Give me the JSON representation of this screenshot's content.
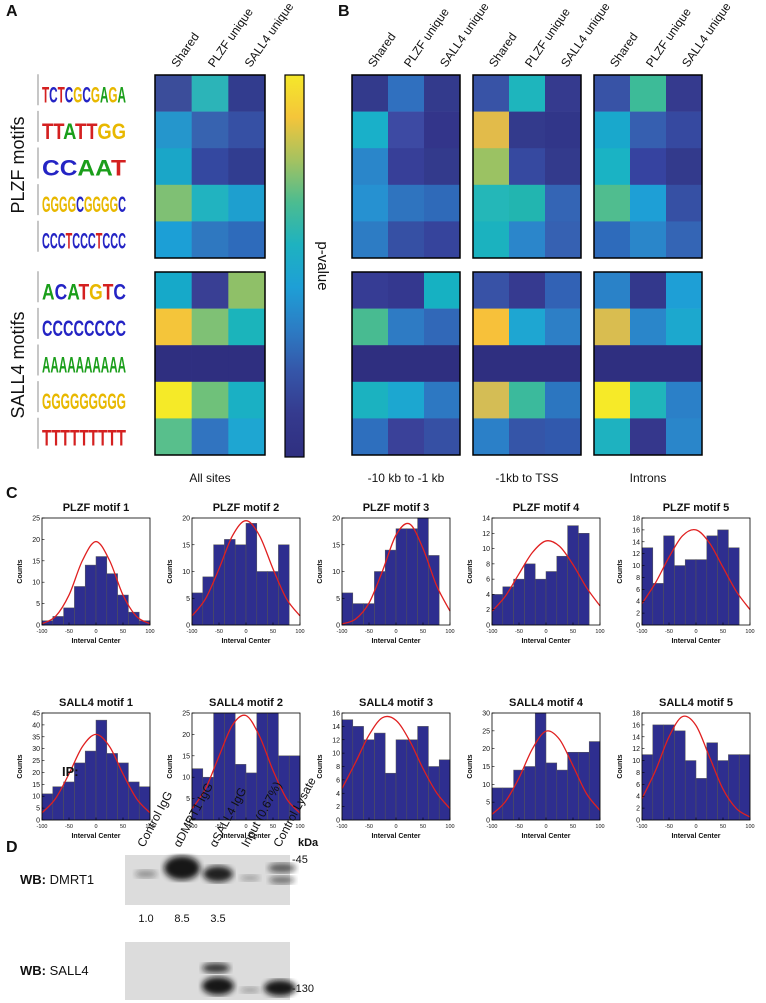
{
  "panel_labels": [
    "A",
    "B",
    "C",
    "D"
  ],
  "motif_logos": [
    "TCTCGCGAGA",
    "TTATTGG",
    "CCAAT",
    "GGGGCGGGGC",
    "CCCTCCCTCCC",
    "ACATGTC",
    "CCCCCCCC",
    "AAAAAAAAAA",
    "GGGGGGGGG",
    "TTTTTTTTT"
  ],
  "heatmaps": {
    "columns": [
      "Shared",
      "PLZF unique",
      "SALL4 unique"
    ],
    "row_groups": [
      "PLZF motifs",
      "SALL4 motifs"
    ],
    "colorbar_label": "p-value",
    "colorbar_colors": [
      "#f5e82a",
      "#f4c53a",
      "#a5c260",
      "#4cbc90",
      "#1eb2c0",
      "#1e9fd6",
      "#2c7cc4",
      "#3555a8",
      "#353a8e",
      "#2f2f80"
    ],
    "maps": [
      {
        "label": "All sites",
        "cells": [
          [
            [
              "#3b4d9a",
              "#2cb4b8",
              "#323c8e"
            ],
            [
              "#2596cc",
              "#3763b0",
              "#3650a4"
            ],
            [
              "#1aa6c8",
              "#3448a0",
              "#313d90"
            ],
            [
              "#7fc074",
              "#21b3c0",
              "#1e9fcf"
            ],
            [
              "#1c9fd6",
              "#2f78c0",
              "#2e6bbb"
            ]
          ],
          [
            [
              "#16a9c9",
              "#393f94",
              "#8fc068"
            ],
            [
              "#f4c53a",
              "#7fc175",
              "#1bb4bb"
            ],
            [
              "#2f2f80",
              "#2f2f80",
              "#2f2f80"
            ],
            [
              "#f5ea28",
              "#6fc17a",
              "#1ab0c4"
            ],
            [
              "#58bf8c",
              "#3174c0",
              "#1ea6d2"
            ]
          ]
        ]
      },
      {
        "label": "-10 kb to -1 kb",
        "cells": [
          [
            [
              "#333a8c",
              "#3070bf",
              "#333a8c"
            ],
            [
              "#19b0c9",
              "#3d4aa3",
              "#33358a"
            ],
            [
              "#2a86ca",
              "#373f98",
              "#333a8c"
            ],
            [
              "#2691d1",
              "#2f74bf",
              "#2f6ab9"
            ],
            [
              "#2d7cc4",
              "#3650a4",
              "#36449c"
            ]
          ],
          [
            [
              "#363c94",
              "#34388f",
              "#16b1c2"
            ],
            [
              "#48bb91",
              "#2e7bc4",
              "#3168b8"
            ],
            [
              "#2f2f80",
              "#2f2f80",
              "#2f2f80"
            ],
            [
              "#1bb2c0",
              "#1ca7d0",
              "#2d78c2"
            ],
            [
              "#2e6fbe",
              "#3a4199",
              "#3650a4"
            ]
          ]
        ]
      },
      {
        "label": "-1kb to TSS",
        "cells": [
          [
            [
              "#3853a6",
              "#1eb5bd",
              "#353a8e"
            ],
            [
              "#e2bb4a",
              "#333a8c",
              "#313689"
            ],
            [
              "#9bc263",
              "#3649a0",
              "#333a8c"
            ],
            [
              "#24b7b8",
              "#22b5b0",
              "#3465b5"
            ],
            [
              "#1bb2bf",
              "#2b86cb",
              "#3661b2"
            ]
          ],
          [
            [
              "#3852a6",
              "#363a90",
              "#3262b5"
            ],
            [
              "#f7c13a",
              "#1ea6d2",
              "#2d7fc6"
            ],
            [
              "#2f2f80",
              "#2f2f80",
              "#2f2f80"
            ],
            [
              "#d4bd55",
              "#3bba9c",
              "#2c76c0"
            ],
            [
              "#2b80c8",
              "#3555a8",
              "#3159ad"
            ]
          ]
        ]
      },
      {
        "label": "Introns",
        "cells": [
          [
            [
              "#3853a6",
              "#3dbb98",
              "#353a8e"
            ],
            [
              "#19a8cc",
              "#365fb0",
              "#3649a0"
            ],
            [
              "#1ab3c4",
              "#3643a0",
              "#333a8c"
            ],
            [
              "#50bd8f",
              "#1e9fd6",
              "#3650a4"
            ],
            [
              "#2e6bbb",
              "#2a86ca",
              "#3465b5"
            ]
          ],
          [
            [
              "#2a82c8",
              "#33388c",
              "#1e9fd6"
            ],
            [
              "#d9bd50",
              "#2a86ca",
              "#1ca8ce"
            ],
            [
              "#2f2f80",
              "#2f2f80",
              "#2f2f80"
            ],
            [
              "#f6ea28",
              "#20b5bb",
              "#2b80c8"
            ],
            [
              "#1eb2c0",
              "#35378c",
              "#2a86ca"
            ]
          ]
        ]
      }
    ]
  },
  "chart_data": [
    {
      "type": "histogram",
      "title": "PLZF motif 1",
      "xlabel": "Interval Center",
      "ylabel": "Counts",
      "color": "#2e2e8f",
      "fit_color": "#e02020",
      "bins": [
        -100,
        -80,
        -60,
        -40,
        -20,
        0,
        20,
        40,
        60,
        80,
        100
      ],
      "counts": [
        1,
        2,
        4,
        9,
        14,
        16,
        12,
        7,
        3,
        1
      ],
      "fit_x": [
        -100,
        -75,
        -50,
        -25,
        0,
        25,
        50,
        75,
        100
      ],
      "fit_y": [
        0.3,
        2.0,
        7.0,
        15.1,
        19.5,
        15.1,
        7.0,
        2.0,
        0.3
      ],
      "xlim": [
        -100,
        100
      ],
      "xticks": [
        -100,
        -50,
        0,
        50,
        100
      ],
      "ylim": [
        0,
        25
      ],
      "yticks": [
        0,
        5,
        10,
        15,
        20,
        25
      ]
    },
    {
      "type": "histogram",
      "title": "PLZF motif 2",
      "xlabel": "Interval Center",
      "ylabel": "Counts",
      "color": "#2e2e8f",
      "fit_color": "#e02020",
      "bins": [
        -100,
        -80,
        -60,
        -40,
        -20,
        0,
        20,
        40,
        60,
        80,
        100
      ],
      "counts": [
        6,
        9,
        15,
        16,
        15,
        19,
        10,
        10,
        15,
        0
      ],
      "fit_x": [
        -100,
        -75,
        -50,
        -25,
        0,
        25,
        50,
        75,
        100
      ],
      "fit_y": [
        1.7,
        4.9,
        10.5,
        16.7,
        19.5,
        16.7,
        10.5,
        4.9,
        1.7
      ],
      "xlim": [
        -100,
        100
      ],
      "xticks": [
        -100,
        -50,
        0,
        50,
        100
      ],
      "ylim": [
        0,
        20
      ],
      "yticks": [
        0,
        5,
        10,
        15,
        20
      ]
    },
    {
      "type": "histogram",
      "title": "PLZF motif 3",
      "xlabel": "Interval Center",
      "ylabel": "Counts",
      "color": "#2e2e8f",
      "fit_color": "#e02020",
      "bins": [
        -100,
        -80,
        -60,
        -40,
        -20,
        0,
        20,
        40,
        60,
        80,
        100
      ],
      "counts": [
        6,
        4,
        4,
        10,
        14,
        18,
        18,
        20,
        13,
        0
      ],
      "fit_x": [
        -100,
        -75,
        -50,
        -25,
        0,
        25,
        50,
        75,
        100
      ],
      "fit_y": [
        0.2,
        1.1,
        4.1,
        10.1,
        16.8,
        18.9,
        14.3,
        7.4,
        2.6
      ],
      "xlim": [
        -100,
        100
      ],
      "xticks": [
        -100,
        -50,
        0,
        50,
        100
      ],
      "ylim": [
        0,
        20
      ],
      "yticks": [
        0,
        5,
        10,
        15,
        20
      ]
    },
    {
      "type": "histogram",
      "title": "PLZF motif 4",
      "xlabel": "Interval Center",
      "ylabel": "Counts",
      "color": "#2e2e8f",
      "fit_color": "#e02020",
      "bins": [
        -100,
        -80,
        -60,
        -40,
        -20,
        0,
        20,
        40,
        60,
        80,
        100
      ],
      "counts": [
        4,
        5,
        6,
        8,
        6,
        7,
        9,
        13,
        12,
        0
      ],
      "fit_x": [
        -100,
        -75,
        -50,
        -25,
        0,
        25,
        50,
        75,
        100
      ],
      "fit_y": [
        1.8,
        3.8,
        6.7,
        9.5,
        11.0,
        10.3,
        7.9,
        4.9,
        2.5
      ],
      "xlim": [
        -100,
        100
      ],
      "xticks": [
        -100,
        -50,
        0,
        50,
        100
      ],
      "ylim": [
        0,
        14
      ],
      "yticks": [
        0,
        2,
        4,
        6,
        8,
        10,
        12,
        14
      ]
    },
    {
      "type": "histogram",
      "title": "PLZF motif 5",
      "xlabel": "Interval Center",
      "ylabel": "Counts",
      "color": "#2e2e8f",
      "fit_color": "#e02020",
      "bins": [
        -100,
        -80,
        -60,
        -40,
        -20,
        0,
        20,
        40,
        60,
        80,
        100
      ],
      "counts": [
        13,
        7,
        15,
        10,
        11,
        11,
        15,
        16,
        13,
        0
      ],
      "fit_x": [
        -100,
        -75,
        -50,
        -25,
        0,
        25,
        50,
        75,
        100
      ],
      "fit_y": [
        3.6,
        7.1,
        11.4,
        15.0,
        16.0,
        13.8,
        9.7,
        5.6,
        2.6
      ],
      "xlim": [
        -100,
        100
      ],
      "xticks": [
        -100,
        -50,
        0,
        50,
        100
      ],
      "ylim": [
        0,
        18
      ],
      "yticks": [
        0,
        2,
        4,
        6,
        8,
        10,
        12,
        14,
        16,
        18
      ]
    },
    {
      "type": "histogram",
      "title": "SALL4 motif 1",
      "xlabel": "Interval Center",
      "ylabel": "Counts",
      "color": "#2e2e8f",
      "fit_color": "#e02020",
      "bins": [
        -100,
        -80,
        -60,
        -40,
        -20,
        0,
        20,
        40,
        60,
        80,
        100
      ],
      "counts": [
        11,
        14,
        16,
        24,
        29,
        42,
        28,
        24,
        16,
        14
      ],
      "fit_x": [
        -100,
        -75,
        -50,
        -25,
        0,
        25,
        50,
        75,
        100
      ],
      "fit_y": [
        3.0,
        9.0,
        19.4,
        30.9,
        36,
        30.9,
        19.4,
        9.0,
        3.0
      ],
      "xlim": [
        -100,
        100
      ],
      "xticks": [
        -100,
        -50,
        0,
        50,
        100
      ],
      "ylim": [
        0,
        45
      ],
      "yticks": [
        0,
        5,
        10,
        15,
        20,
        25,
        30,
        35,
        40,
        45
      ]
    },
    {
      "type": "histogram",
      "title": "SALL4 motif 2",
      "xlabel": "Interval Center",
      "ylabel": "Counts",
      "color": "#2e2e8f",
      "fit_color": "#e02020",
      "bins": [
        -100,
        -80,
        -60,
        -40,
        -20,
        0,
        20,
        40,
        60,
        80,
        100
      ],
      "counts": [
        12,
        10,
        25,
        25,
        13,
        11,
        25,
        25,
        15,
        15
      ],
      "fit_x": [
        -100,
        -75,
        -50,
        -25,
        0,
        25,
        50,
        75,
        100
      ],
      "fit_y": [
        2.6,
        7.3,
        14.9,
        22.2,
        24.4,
        19.6,
        11.6,
        5.0,
        1.6
      ],
      "xlim": [
        -100,
        100
      ],
      "xticks": [
        -100,
        -50,
        0,
        50,
        100
      ],
      "ylim": [
        0,
        25
      ],
      "yticks": [
        0,
        5,
        10,
        15,
        20,
        25
      ]
    },
    {
      "type": "histogram",
      "title": "SALL4 motif 3",
      "xlabel": "Interval Center",
      "ylabel": "Counts",
      "color": "#2e2e8f",
      "fit_color": "#e02020",
      "bins": [
        -100,
        -80,
        -60,
        -40,
        -20,
        0,
        20,
        40,
        60,
        80,
        100
      ],
      "counts": [
        15,
        14,
        12,
        13,
        7,
        12,
        12,
        14,
        8,
        9
      ],
      "fit_x": [
        -100,
        -75,
        -50,
        -25,
        0,
        25,
        50,
        75,
        100
      ],
      "fit_y": [
        4.7,
        8.6,
        12.7,
        15.3,
        14.9,
        11.9,
        7.7,
        4.1,
        1.7
      ],
      "xlim": [
        -100,
        100
      ],
      "xticks": [
        -100,
        -50,
        0,
        50,
        100
      ],
      "ylim": [
        0,
        16
      ],
      "yticks": [
        0,
        2,
        4,
        6,
        8,
        10,
        12,
        14,
        16
      ]
    },
    {
      "type": "histogram",
      "title": "SALL4 motif 4",
      "xlabel": "Interval Center",
      "ylabel": "Counts",
      "color": "#2e2e8f",
      "fit_color": "#e02020",
      "bins": [
        -100,
        -80,
        -60,
        -40,
        -20,
        0,
        20,
        40,
        60,
        80,
        100
      ],
      "counts": [
        9,
        9,
        14,
        15,
        30,
        16,
        14,
        19,
        19,
        22
      ],
      "fit_x": [
        -100,
        -75,
        -50,
        -25,
        0,
        25,
        50,
        75,
        100
      ],
      "fit_y": [
        1.6,
        5.2,
        11.8,
        20.0,
        24.9,
        22.6,
        15.2,
        7.4,
        2.7
      ],
      "xlim": [
        -100,
        100
      ],
      "xticks": [
        -100,
        -50,
        0,
        50,
        100
      ],
      "ylim": [
        0,
        30
      ],
      "yticks": [
        0,
        5,
        10,
        15,
        20,
        25,
        30
      ]
    },
    {
      "type": "histogram",
      "title": "SALL4 motif 5",
      "xlabel": "Interval Center",
      "ylabel": "Counts",
      "color": "#2e2e8f",
      "fit_color": "#e02020",
      "bins": [
        -100,
        -80,
        -60,
        -40,
        -20,
        0,
        20,
        40,
        60,
        80,
        100
      ],
      "counts": [
        11,
        16,
        16,
        15,
        10,
        7,
        13,
        10,
        11,
        11
      ],
      "fit_x": [
        -100,
        -75,
        -50,
        -25,
        0,
        25,
        50,
        75,
        100
      ],
      "fit_y": [
        3.6,
        8.3,
        14.0,
        17.4,
        15.9,
        10.6,
        5.2,
        1.9,
        0.5
      ],
      "xlim": [
        -100,
        100
      ],
      "xticks": [
        -100,
        -50,
        0,
        50,
        100
      ],
      "ylim": [
        0,
        18
      ],
      "yticks": [
        0,
        2,
        4,
        6,
        8,
        10,
        12,
        14,
        16,
        18
      ]
    }
  ],
  "western": {
    "ip_label": "IP:",
    "lanes": [
      "Control IgG",
      "αDMRT1 IgG",
      "αSALL4 IgG",
      "Input (0.67%)",
      "Control Lysate"
    ],
    "unit": "kDa",
    "blots": [
      {
        "prefix": "WB:",
        "probe": "DMRT1",
        "marker": "-45",
        "quantification": [
          "1.0",
          "8.5",
          "3.5"
        ]
      },
      {
        "prefix": "WB:",
        "probe": "SALL4",
        "marker": "-130"
      }
    ]
  }
}
